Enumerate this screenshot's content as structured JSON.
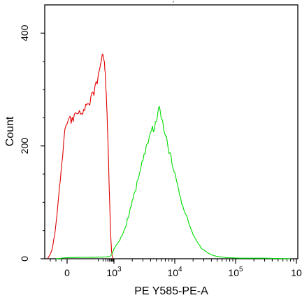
{
  "chart_data": {
    "type": "line",
    "title": "",
    "xlabel": "PE Y585-PE-A",
    "ylabel": "Count",
    "x_scale": "biexponential (logicle)",
    "y_range": [
      0,
      450
    ],
    "y_ticks": [
      {
        "value": 0,
        "label": "0"
      },
      {
        "value": 200,
        "label": "200"
      },
      {
        "value": 400,
        "label": "400"
      }
    ],
    "x_ticks": [
      {
        "value": 0,
        "label": "0"
      },
      {
        "value": 1000,
        "label": "10",
        "sup": "3"
      },
      {
        "value": 10000,
        "label": "10",
        "sup": "4"
      },
      {
        "value": 100000,
        "label": "10",
        "sup": "5"
      },
      {
        "value": 1000000,
        "label": "10",
        "sup": ""
      }
    ],
    "grid": false,
    "legend": "none",
    "series": [
      {
        "color": "#e00000",
        "points": [
          [
            -350,
            0
          ],
          [
            -300,
            8
          ],
          [
            -260,
            20
          ],
          [
            -220,
            45
          ],
          [
            -180,
            80
          ],
          [
            -140,
            120
          ],
          [
            -100,
            165
          ],
          [
            -60,
            205
          ],
          [
            -20,
            240
          ],
          [
            20,
            270
          ],
          [
            60,
            300
          ],
          [
            100,
            325
          ],
          [
            140,
            345
          ],
          [
            170,
            358
          ],
          [
            200,
            362
          ],
          [
            230,
            352
          ],
          [
            260,
            340
          ],
          [
            290,
            320
          ],
          [
            320,
            295
          ],
          [
            350,
            268
          ],
          [
            380,
            232
          ],
          [
            410,
            205
          ],
          [
            440,
            175
          ],
          [
            480,
            140
          ],
          [
            520,
            108
          ],
          [
            560,
            78
          ],
          [
            600,
            50
          ],
          [
            650,
            30
          ],
          [
            700,
            15
          ],
          [
            760,
            6
          ],
          [
            820,
            2
          ],
          [
            900,
            0
          ]
        ]
      },
      {
        "color": "#00dd00",
        "points": [
          [
            -200,
            0
          ],
          [
            0,
            2
          ],
          [
            300,
            3
          ],
          [
            600,
            5
          ],
          [
            800,
            10
          ],
          [
            1000,
            18
          ],
          [
            1200,
            30
          ],
          [
            1400,
            45
          ],
          [
            1600,
            62
          ],
          [
            1800,
            82
          ],
          [
            2000,
            100
          ],
          [
            2300,
            125
          ],
          [
            2600,
            150
          ],
          [
            3000,
            178
          ],
          [
            3400,
            200
          ],
          [
            3800,
            215
          ],
          [
            4300,
            228
          ],
          [
            4800,
            240
          ],
          [
            5300,
            258
          ],
          [
            5600,
            265
          ],
          [
            6000,
            250
          ],
          [
            6600,
            232
          ],
          [
            7300,
            212
          ],
          [
            8000,
            192
          ],
          [
            9000,
            170
          ],
          [
            10000,
            150
          ],
          [
            11500,
            125
          ],
          [
            13000,
            100
          ],
          [
            15000,
            80
          ],
          [
            17500,
            60
          ],
          [
            20000,
            42
          ],
          [
            24000,
            28
          ],
          [
            28000,
            18
          ],
          [
            33000,
            12
          ],
          [
            40000,
            7
          ],
          [
            50000,
            4
          ],
          [
            70000,
            2
          ],
          [
            120000,
            1
          ],
          [
            300000,
            1
          ],
          [
            800000,
            0
          ]
        ]
      }
    ]
  },
  "top_marker": "ʼ"
}
